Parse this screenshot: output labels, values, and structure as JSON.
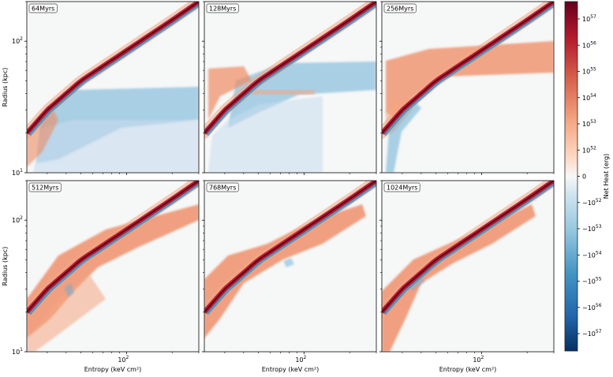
{
  "chart_data": {
    "type": "heatmap",
    "figure": "Net heat in radius-entropy space, 2x3 panel grid",
    "xlabel": "Entropy (keV cm$^2$)",
    "xlabel_text": "Entropy (keV cm²)",
    "ylabel": "Radius (kpc)",
    "x_scale": "log",
    "y_scale": "log",
    "xlim": [
      22,
      300
    ],
    "ylim": [
      10,
      200
    ],
    "x_ticks": [
      {
        "value": 100,
        "label": "10",
        "exp": "2"
      }
    ],
    "y_ticks": [
      {
        "value": 10,
        "label": "10",
        "exp": "1"
      },
      {
        "value": 100,
        "label": "10",
        "exp": "2"
      }
    ],
    "panels": [
      {
        "label": "64Myrs",
        "row": 0,
        "col": 0
      },
      {
        "label": "128Myrs",
        "row": 0,
        "col": 1
      },
      {
        "label": "256Myrs",
        "row": 0,
        "col": 2
      },
      {
        "label": "512Myrs",
        "row": 1,
        "col": 0
      },
      {
        "label": "768Myrs",
        "row": 1,
        "col": 1
      },
      {
        "label": "1024Myrs",
        "row": 1,
        "col": 2
      }
    ],
    "profile": {
      "description": "thin dense ridge (entropy profile) approx R(kpc) vs K(keV cm2)",
      "points": [
        [
          22,
          20
        ],
        [
          30,
          30
        ],
        [
          50,
          50
        ],
        [
          100,
          85
        ],
        [
          200,
          145
        ],
        [
          300,
          200
        ]
      ]
    },
    "colorbar": {
      "label": "Net Heat (erg)",
      "scale": "symlog",
      "cmap": "RdBu_r",
      "ticks": [
        {
          "base": "10",
          "exp": "57",
          "sign": ""
        },
        {
          "base": "10",
          "exp": "56",
          "sign": ""
        },
        {
          "base": "10",
          "exp": "55",
          "sign": ""
        },
        {
          "base": "10",
          "exp": "54",
          "sign": ""
        },
        {
          "base": "10",
          "exp": "53",
          "sign": ""
        },
        {
          "base": "10",
          "exp": "52",
          "sign": ""
        },
        {
          "base": "0",
          "exp": "",
          "sign": ""
        },
        {
          "base": "10",
          "exp": "52",
          "sign": "−"
        },
        {
          "base": "10",
          "exp": "53",
          "sign": "−"
        },
        {
          "base": "10",
          "exp": "54",
          "sign": "−"
        },
        {
          "base": "10",
          "exp": "55",
          "sign": "−"
        },
        {
          "base": "10",
          "exp": "56",
          "sign": "−"
        },
        {
          "base": "10",
          "exp": "57",
          "sign": "−"
        }
      ],
      "colors": [
        "#67001f",
        "#b2182b",
        "#d6604d",
        "#f4a582",
        "#fddbc7",
        "#f7f7f7",
        "#d1e5f0",
        "#92c5de",
        "#4393c3",
        "#2166ac",
        "#053061"
      ]
    }
  }
}
